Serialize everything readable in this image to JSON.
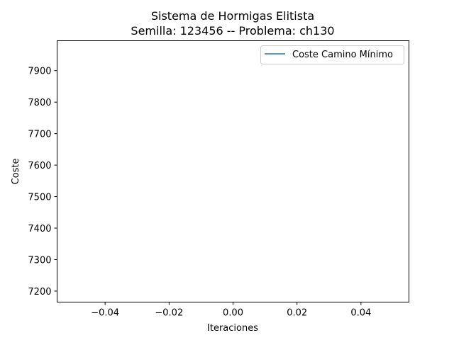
{
  "chart_data": {
    "type": "line",
    "title_line1": "Sistema de Hormigas Elitista",
    "title_line2": "Semilla: 123456 -- Problema: ch130",
    "xlabel": "Iteraciones",
    "ylabel": "Coste",
    "xlim": [
      -0.055,
      0.055
    ],
    "ylim": [
      7165,
      7995
    ],
    "x_ticks": [
      -0.04,
      -0.02,
      0.0,
      0.02,
      0.04
    ],
    "x_tick_labels": [
      "−0.04",
      "−0.02",
      "0.00",
      "0.02",
      "0.04"
    ],
    "y_ticks": [
      7200,
      7300,
      7400,
      7500,
      7600,
      7700,
      7800,
      7900
    ],
    "y_tick_labels": [
      "7200",
      "7300",
      "7400",
      "7500",
      "7600",
      "7700",
      "7800",
      "7900"
    ],
    "legend_position": "top-right",
    "grid": false,
    "series": [
      {
        "name": "Coste Camino Mínimo",
        "color": "#1f77b4",
        "x": [],
        "y": []
      }
    ]
  }
}
